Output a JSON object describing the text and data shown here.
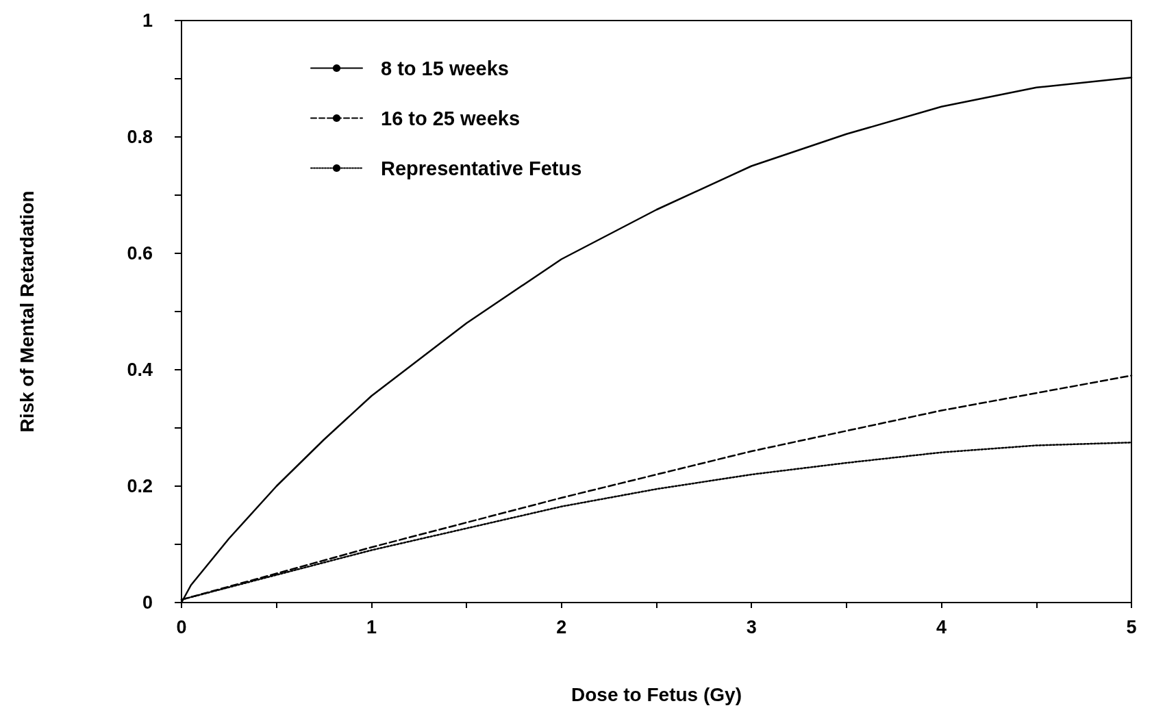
{
  "chart_data": {
    "type": "line",
    "xlabel": "Dose to Fetus (Gy)",
    "ylabel": "Risk of Mental Retardation",
    "xlim": [
      0,
      5
    ],
    "ylim": [
      0,
      1
    ],
    "xticks": [
      0,
      {
        "value": 0.5,
        "label": null
      },
      1,
      {
        "value": 1.5,
        "label": null
      },
      2,
      {
        "value": 2.5,
        "label": null
      },
      3,
      {
        "value": 3.5,
        "label": null
      },
      4,
      {
        "value": 4.5,
        "label": null
      },
      5
    ],
    "yticks": [
      0,
      {
        "value": 0.1,
        "label": null
      },
      0.2,
      {
        "value": 0.3,
        "label": null
      },
      0.4,
      {
        "value": 0.5,
        "label": null
      },
      0.6,
      {
        "value": 0.7,
        "label": null
      },
      0.8,
      {
        "value": 0.9,
        "label": null
      },
      1
    ],
    "grid": false,
    "legend": "top left",
    "marker": "none",
    "series": [
      {
        "name": "8 to 15 weeks",
        "color": "#000000",
        "line_style": "solid",
        "x": [
          0,
          0.05,
          0.25,
          0.5,
          0.75,
          1,
          1.5,
          2,
          2.5,
          3,
          3.5,
          4,
          4.5,
          5
        ],
        "values": [
          0,
          0.03,
          0.11,
          0.2,
          0.28,
          0.355,
          0.48,
          0.59,
          0.675,
          0.75,
          0.805,
          0.852,
          0.885,
          0.902
        ]
      },
      {
        "name": "16 to 25 weeks",
        "color": "#000000",
        "line_style": "dashed",
        "x": [
          0,
          1,
          2,
          3,
          4,
          5
        ],
        "values": [
          0.005,
          0.095,
          0.18,
          0.26,
          0.33,
          0.39
        ]
      },
      {
        "name": "Representative Fetus",
        "color": "#000000",
        "line_style": "dotted",
        "x": [
          0,
          1,
          2,
          2.5,
          3,
          3.5,
          4,
          4.5,
          5
        ],
        "values": [
          0.005,
          0.09,
          0.165,
          0.195,
          0.22,
          0.24,
          0.258,
          0.27,
          0.275
        ]
      }
    ]
  }
}
